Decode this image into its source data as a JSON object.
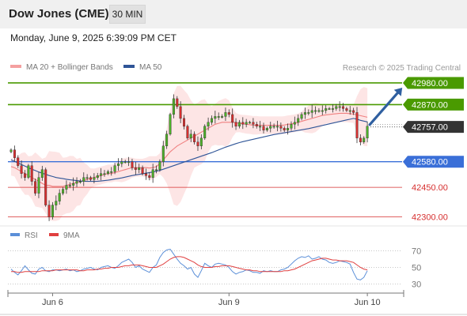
{
  "header": {
    "title": "Dow Jones (CME)",
    "timeframe": "30 MIN"
  },
  "datetime": "Monday, June 9, 2025 6:39:09 PM CET",
  "legend": {
    "ma20_label": "MA 20 + Bollinger Bands",
    "ma50_label": "MA 50",
    "source": "Research © 2025 Trading Central"
  },
  "colors": {
    "bull": "#4caf28",
    "bear": "#d62f2f",
    "ma20": "#f08080",
    "band": "#fcdcdc",
    "ma50": "#2f5597",
    "green_level": "#4a9a00",
    "blue_level": "#3a6fd8",
    "red_level": "#d62f2f",
    "current": "#333333",
    "rsi": "#5b8fd8",
    "rsi_ma": "#e04040",
    "arrow": "#2f5fa0"
  },
  "rsi_legend": {
    "rsi_label": "RSI",
    "ma_label": "9MA"
  },
  "chart_data": [
    {
      "type": "candlestick",
      "title": "Dow Jones (CME) 30 MIN",
      "ylim": [
        42270,
        43020
      ],
      "x_ticks": [
        {
          "label": "Jun 6",
          "index": 12
        },
        {
          "label": "Jun 9",
          "index": 63
        },
        {
          "label": "Jun 10",
          "index": 103
        }
      ],
      "levels": [
        {
          "value": 42980.0,
          "label": "42980.00",
          "kind": "resistance",
          "style": "green",
          "badge": true
        },
        {
          "value": 42870.0,
          "label": "42870.00",
          "kind": "resistance",
          "style": "green",
          "badge": true
        },
        {
          "value": 42757.0,
          "label": "42757.00",
          "kind": "current",
          "style": "current",
          "badge": true
        },
        {
          "value": 42580.0,
          "label": "42580.00",
          "kind": "pivot",
          "style": "blue",
          "badge": true
        },
        {
          "value": 42450.0,
          "label": "42450.00",
          "kind": "support",
          "style": "red",
          "badge": false
        },
        {
          "value": 42300.0,
          "label": "42300.00",
          "kind": "support",
          "style": "red",
          "badge": false
        }
      ],
      "forecast_arrow": {
        "from_index": 103,
        "from_value": 42760,
        "to_index": 114,
        "to_value": 42980
      },
      "closes": [
        42640,
        42600,
        42560,
        42520,
        42500,
        42560,
        42480,
        42420,
        42500,
        42540,
        42360,
        42300,
        42360,
        42380,
        42420,
        42440,
        42460,
        42460,
        42470,
        42480,
        42480,
        42500,
        42500,
        42490,
        42500,
        42510,
        42520,
        42520,
        42530,
        42530,
        42560,
        42570,
        42580,
        42580,
        42580,
        42550,
        42540,
        42550,
        42520,
        42510,
        42500,
        42540,
        42540,
        42580,
        42660,
        42720,
        42820,
        42900,
        42860,
        42800,
        42760,
        42700,
        42720,
        42680,
        42660,
        42700,
        42760,
        42780,
        42800,
        42810,
        42810,
        42810,
        42830,
        42820,
        42780,
        42760,
        42780,
        42770,
        42780,
        42780,
        42770,
        42760,
        42760,
        42740,
        42750,
        42760,
        42760,
        42760,
        42750,
        42740,
        42750,
        42770,
        42780,
        42800,
        42820,
        42830,
        42830,
        42840,
        42840,
        42840,
        42840,
        42850,
        42850,
        42850,
        42860,
        42860,
        42850,
        42840,
        42840,
        42830,
        42700,
        42680,
        42700,
        42760
      ],
      "ma20": [
        42555,
        42550,
        42540,
        42530,
        42520,
        42510,
        42500,
        42490,
        42480,
        42470,
        42460,
        42460,
        42455,
        42455,
        42455,
        42455,
        42460,
        42465,
        42470,
        42475,
        42480,
        42485,
        42490,
        42495,
        42500,
        42505,
        42510,
        42515,
        42520,
        42520,
        42525,
        42530,
        42535,
        42540,
        42545,
        42550,
        42550,
        42550,
        42550,
        42550,
        42548,
        42550,
        42555,
        42570,
        42590,
        42610,
        42630,
        42645,
        42660,
        42670,
        42680,
        42690,
        42700,
        42710,
        42720,
        42730,
        42740,
        42750,
        42760,
        42770,
        42775,
        42780,
        42780,
        42780,
        42780,
        42778,
        42775,
        42772,
        42770,
        42768,
        42765,
        42765,
        42765,
        42765,
        42765,
        42765,
        42765,
        42765,
        42765,
        42766,
        42770,
        42772,
        42775,
        42780,
        42785,
        42790,
        42795,
        42800,
        42805,
        42810,
        42815,
        42818,
        42820,
        42822,
        42824,
        42826,
        42826,
        42826,
        42824,
        42822,
        42818,
        42814,
        42810,
        42806
      ],
      "ma50": [
        42590,
        42582,
        42574,
        42566,
        42558,
        42550,
        42542,
        42535,
        42528,
        42522,
        42516,
        42510,
        42505,
        42500,
        42497,
        42494,
        42491,
        42488,
        42486,
        42484,
        42482,
        42481,
        42480,
        42480,
        42480,
        42481,
        42482,
        42484,
        42486,
        42489,
        42492,
        42495,
        42498,
        42502,
        42506,
        42510,
        42513,
        42516,
        42519,
        42522,
        42525,
        42528,
        42532,
        42536,
        42542,
        42548,
        42554,
        42560,
        42566,
        42572,
        42578,
        42584,
        42590,
        42596,
        42602,
        42608,
        42614,
        42620,
        42626,
        42633,
        42640,
        42647,
        42654,
        42660,
        42666,
        42672,
        42677,
        42682,
        42686,
        42690,
        42694,
        42698,
        42702,
        42706,
        42710,
        42714,
        42718,
        42721,
        42724,
        42727,
        42730,
        42733,
        42736,
        42739,
        42742,
        42745,
        42748,
        42752,
        42756,
        42760,
        42764,
        42768,
        42772,
        42776,
        42780,
        42784,
        42788,
        42792,
        42796,
        42800,
        42796,
        42790,
        42786,
        42782
      ]
    },
    {
      "type": "line",
      "title": "RSI",
      "ylim": [
        20,
        80
      ],
      "y_ticks": [
        70,
        50,
        30
      ],
      "guides": [
        70,
        50,
        30
      ],
      "series": [
        {
          "name": "RSI",
          "values": [
            48,
            44,
            41,
            46,
            52,
            47,
            43,
            42,
            48,
            50,
            46,
            45,
            47,
            47,
            46,
            47,
            48,
            46,
            47,
            45,
            46,
            48,
            49,
            50,
            48,
            47,
            50,
            51,
            52,
            50,
            49,
            52,
            56,
            58,
            60,
            56,
            50,
            52,
            48,
            46,
            44,
            50,
            53,
            62,
            68,
            71,
            72,
            66,
            60,
            55,
            52,
            48,
            50,
            42,
            38,
            46,
            55,
            52,
            50,
            54,
            55,
            54,
            53,
            50,
            45,
            42,
            44,
            45,
            47,
            46,
            44,
            44,
            43,
            46,
            45,
            46,
            45,
            45,
            47,
            48,
            50,
            54,
            58,
            61,
            63,
            62,
            64,
            60,
            61,
            63,
            60,
            59,
            56,
            55,
            56,
            58,
            57,
            56,
            54,
            44,
            36,
            35,
            38,
            46
          ]
        },
        {
          "name": "9MA",
          "values": [
            45,
            45,
            44,
            44,
            45,
            45,
            45,
            45,
            45,
            46,
            46,
            46,
            46,
            47,
            47,
            47,
            47,
            47,
            47,
            47,
            46,
            46,
            47,
            47,
            47,
            48,
            48,
            49,
            49,
            50,
            50,
            50,
            51,
            52,
            52,
            53,
            53,
            53,
            52,
            51,
            50,
            50,
            50,
            52,
            54,
            57,
            60,
            62,
            63,
            63,
            62,
            60,
            58,
            56,
            53,
            51,
            50,
            50,
            50,
            51,
            51,
            52,
            52,
            52,
            51,
            50,
            49,
            48,
            47,
            47,
            46,
            46,
            45,
            45,
            45,
            45,
            45,
            45,
            45,
            46,
            46,
            47,
            48,
            50,
            52,
            54,
            56,
            58,
            59,
            60,
            61,
            61,
            60,
            59,
            59,
            58,
            58,
            58,
            57,
            56,
            53,
            50,
            48,
            47
          ]
        }
      ]
    }
  ]
}
